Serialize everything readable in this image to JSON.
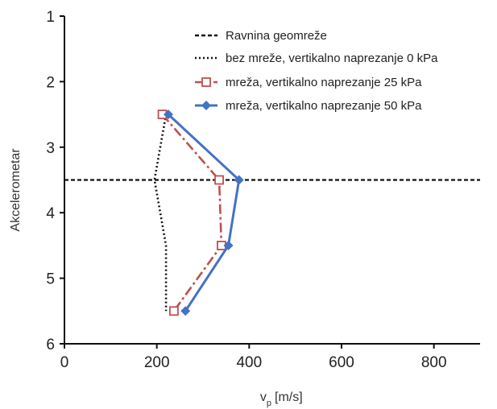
{
  "chart_data": {
    "type": "line",
    "title": "",
    "xlabel": "v",
    "xlabel_sub": "p",
    "xlabel_unit": "[m/s]",
    "ylabel": "Akcelerometar",
    "xlim": [
      0,
      900
    ],
    "ylim": [
      6,
      1
    ],
    "y_inverted": true,
    "xticks": [
      0,
      200,
      400,
      600,
      800
    ],
    "yticks": [
      1,
      2,
      3,
      4,
      5,
      6
    ],
    "grid": false,
    "legend_position": "top-right",
    "reference_line": {
      "name": "Ravnina geomreže",
      "y": 3.5,
      "color": "#111111",
      "style": "dashed"
    },
    "series": [
      {
        "name": "bez mreže, vertikalno naprezanje 0 kPa",
        "color": "#111111",
        "style": "dotted",
        "marker": "none",
        "x": [
          220,
          195,
          220,
          220
        ],
        "y": [
          2.5,
          3.5,
          4.5,
          5.5
        ]
      },
      {
        "name": "mreža, vertikalno naprezanje  25 kPa",
        "color": "#c0504d",
        "style": "dashdot",
        "marker": "square-open",
        "x": [
          212,
          335,
          340,
          237
        ],
        "y": [
          2.5,
          3.5,
          4.5,
          5.5
        ]
      },
      {
        "name": "mreža, vertikalno naprezanje 50 kPa",
        "color": "#4472c4",
        "style": "solid",
        "marker": "diamond",
        "x": [
          225,
          378,
          355,
          262
        ],
        "y": [
          2.5,
          3.5,
          4.5,
          5.5
        ]
      }
    ]
  }
}
